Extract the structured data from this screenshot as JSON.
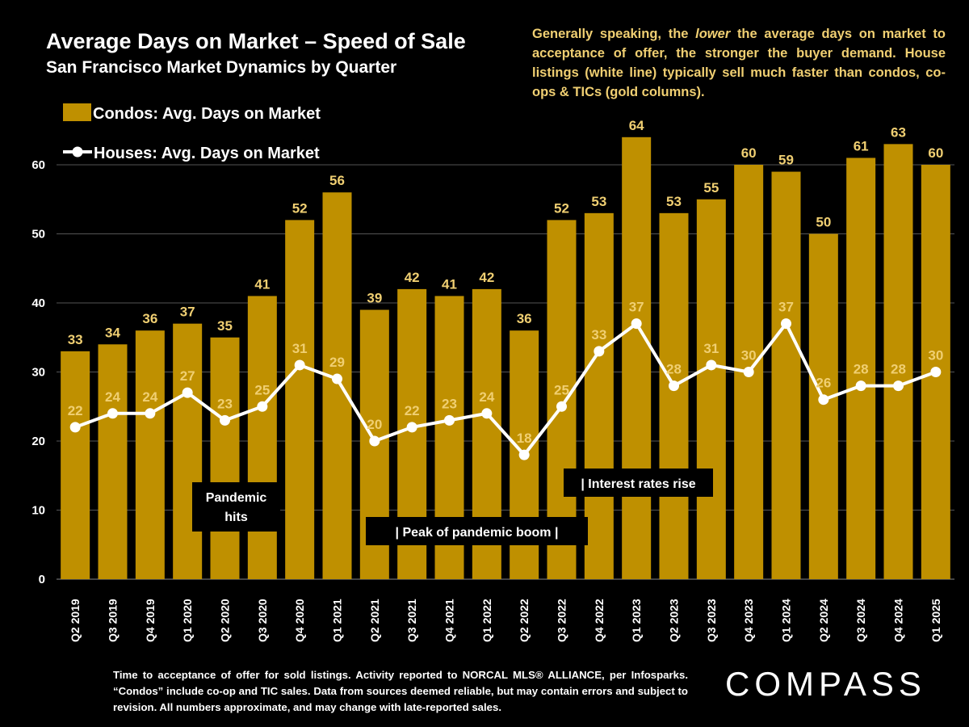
{
  "title": "Average Days on Market – Speed of Sale",
  "subtitle": "San Francisco Market Dynamics by Quarter",
  "note": {
    "part1": "Generally speaking, the ",
    "emphasis": "lower",
    "part2": " the average days on market to acceptance of offer, the stronger the buyer demand.  House listings (white line) typically sell much faster than condos, co-ops & TICs (gold columns)."
  },
  "footer": "Time to acceptance of offer for sold listings. Activity reported to NORCAL MLS® ALLIANCE, per Infosparks. “Condos” include co-op and TIC sales. Data from sources deemed reliable, but may contain errors and subject to revision. All numbers approximate, and may change with late-reported sales.",
  "logo": "COMPASS",
  "colors": {
    "bar": "#bf9000",
    "label": "#f0cf72",
    "line": "#ffffff",
    "background": "#000000",
    "annotation_box": "#000000"
  },
  "chart_data": {
    "type": "bar",
    "categories": [
      "Q2 2019",
      "Q3 2019",
      "Q4 2019",
      "Q1 2020",
      "Q2 2020",
      "Q3 2020",
      "Q4 2020",
      "Q1 2021",
      "Q2 2021",
      "Q3 2021",
      "Q4 2021",
      "Q1 2022",
      "Q2 2022",
      "Q3 2022",
      "Q4 2022",
      "Q1 2023",
      "Q2 2023",
      "Q3 2023",
      "Q4 2023",
      "Q1 2024",
      "Q2 2024",
      "Q3 2024",
      "Q4 2024",
      "Q1 2025"
    ],
    "series": [
      {
        "name": "Condos: Avg. Days on Market",
        "type": "bar",
        "values": [
          33,
          34,
          36,
          37,
          35,
          41,
          52,
          56,
          39,
          42,
          41,
          42,
          36,
          52,
          53,
          64,
          53,
          55,
          60,
          59,
          50,
          61,
          63,
          60
        ]
      },
      {
        "name": "Houses: Avg. Days on Market",
        "type": "line",
        "values": [
          22,
          24,
          24,
          27,
          23,
          25,
          31,
          29,
          20,
          22,
          23,
          24,
          18,
          25,
          33,
          37,
          28,
          31,
          30,
          37,
          26,
          28,
          28,
          30
        ]
      }
    ],
    "yticks": [
      0,
      10,
      20,
      30,
      40,
      50,
      60
    ],
    "ylim": [
      0,
      70
    ],
    "grid": true,
    "legend": "top-left",
    "annotations": [
      {
        "lines": [
          "Pandemic",
          "hits"
        ]
      },
      {
        "lines": [
          "|    Peak of pandemic boom      |"
        ]
      },
      {
        "lines": [
          "| Interest rates rise"
        ]
      }
    ]
  }
}
